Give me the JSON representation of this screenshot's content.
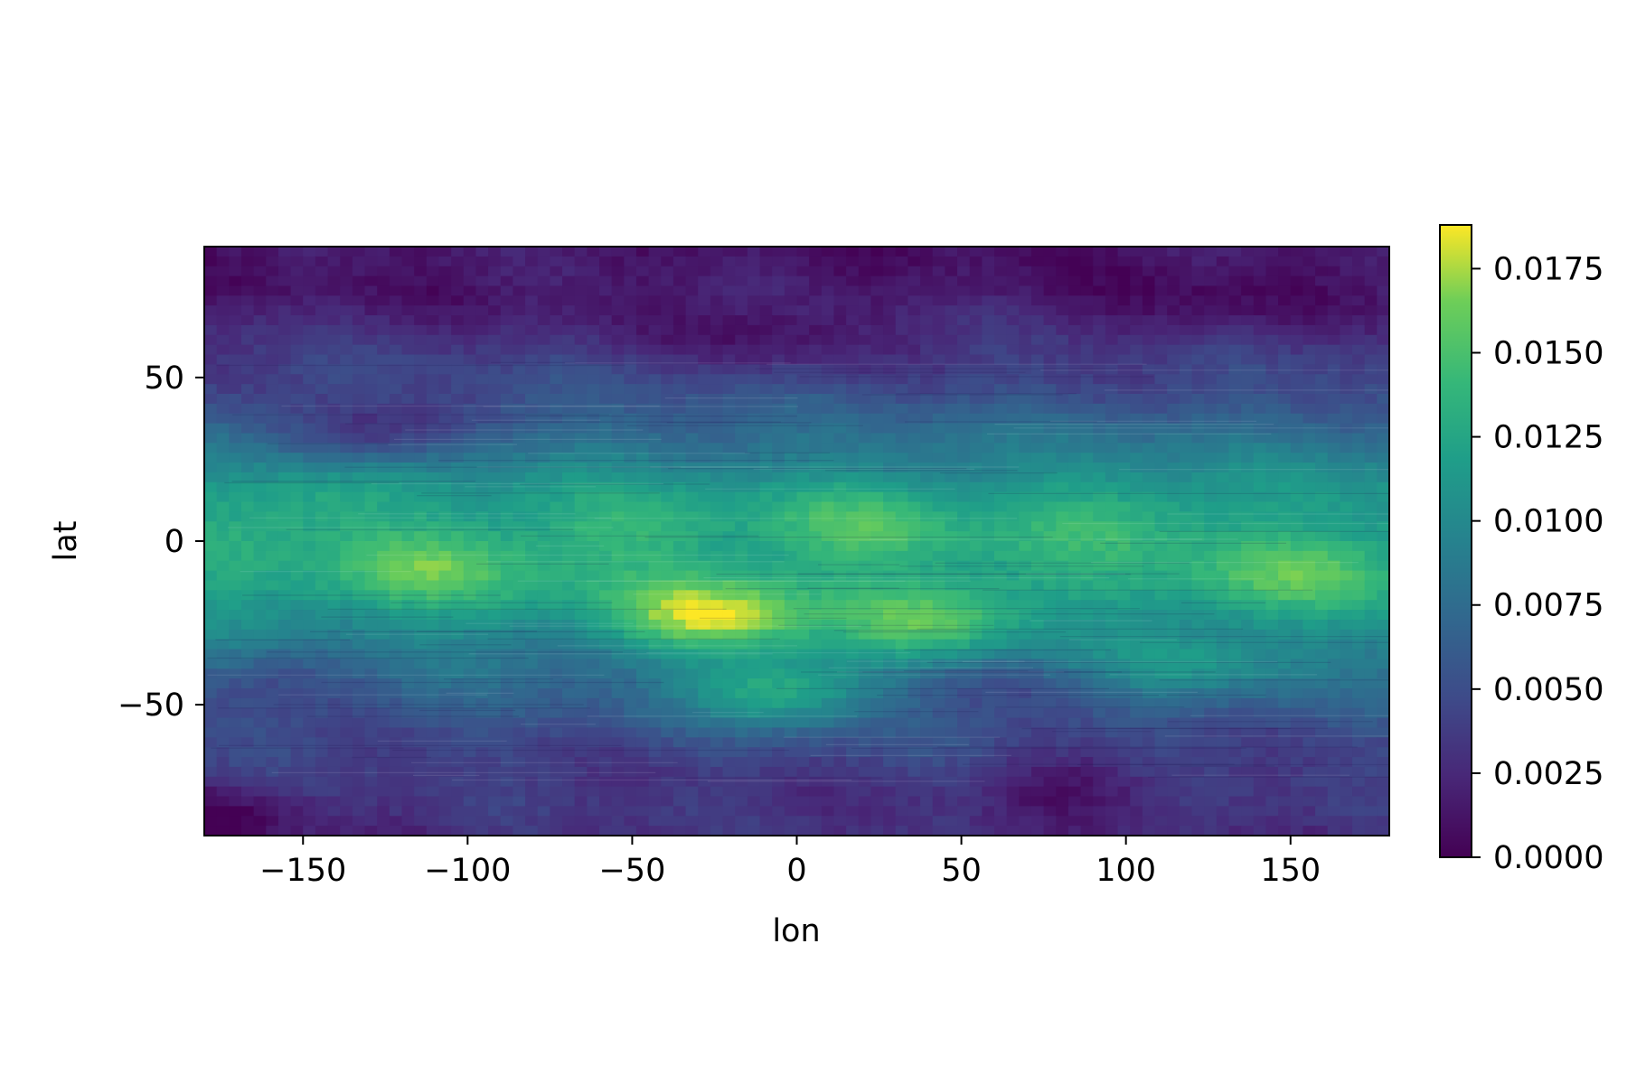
{
  "chart_data": {
    "type": "heatmap",
    "title": "",
    "xlabel": "lon",
    "ylabel": "lat",
    "xlim": [
      -180,
      180
    ],
    "ylim": [
      -90,
      90
    ],
    "x_ticks": [
      -150,
      -100,
      -50,
      0,
      50,
      100,
      150
    ],
    "x_tick_labels": [
      "−150",
      "−100",
      "−50",
      "0",
      "50",
      "100",
      "150"
    ],
    "y_ticks": [
      -50,
      0,
      50
    ],
    "y_tick_labels": [
      "−50",
      "0",
      "50"
    ],
    "colormap": "viridis",
    "colorbar": {
      "min": 0.0,
      "max": 0.0188,
      "ticks": [
        0.0,
        0.0025,
        0.005,
        0.0075,
        0.01,
        0.0125,
        0.015,
        0.0175
      ],
      "tick_labels": [
        "0.0000",
        "0.0025",
        "0.0050",
        "0.0075",
        "0.0100",
        "0.0125",
        "0.0150",
        "0.0175"
      ]
    },
    "lat_profile": [
      {
        "lat": 90,
        "value": 0.0012
      },
      {
        "lat": 75,
        "value": 0.0015
      },
      {
        "lat": 60,
        "value": 0.0032
      },
      {
        "lat": 45,
        "value": 0.0052
      },
      {
        "lat": 30,
        "value": 0.0082
      },
      {
        "lat": 15,
        "value": 0.0112
      },
      {
        "lat": 0,
        "value": 0.0125
      },
      {
        "lat": -15,
        "value": 0.0122
      },
      {
        "lat": -30,
        "value": 0.0098
      },
      {
        "lat": -45,
        "value": 0.0068
      },
      {
        "lat": -60,
        "value": 0.0048
      },
      {
        "lat": -75,
        "value": 0.0035
      },
      {
        "lat": -90,
        "value": 0.003
      }
    ],
    "features": [
      {
        "lon": -25,
        "lat": -22,
        "value": 0.0185
      },
      {
        "lon": 40,
        "lat": -23,
        "value": 0.016
      },
      {
        "lon": -110,
        "lat": -8,
        "value": 0.0158
      },
      {
        "lon": 150,
        "lat": -10,
        "value": 0.0155
      },
      {
        "lon": 20,
        "lat": 5,
        "value": 0.0148
      },
      {
        "lon": -55,
        "lat": 2,
        "value": 0.014
      },
      {
        "lon": 95,
        "lat": 5,
        "value": 0.0142
      },
      {
        "lon": -5,
        "lat": -45,
        "value": 0.0135
      },
      {
        "lon": 120,
        "lat": -35,
        "value": 0.0115
      },
      {
        "lon": -150,
        "lat": 10,
        "value": 0.0135
      },
      {
        "lon": -130,
        "lat": 35,
        "value": 0.003
      },
      {
        "lon": -160,
        "lat": -45,
        "value": 0.0045
      },
      {
        "lon": 60,
        "lat": -48,
        "value": 0.0055
      },
      {
        "lon": -10,
        "lat": 65,
        "value": 0.001
      },
      {
        "lon": 120,
        "lat": 75,
        "value": 0.0008
      },
      {
        "lon": -175,
        "lat": -85,
        "value": 0.0002
      },
      {
        "lon": 85,
        "lat": -75,
        "value": 0.0012
      }
    ]
  }
}
